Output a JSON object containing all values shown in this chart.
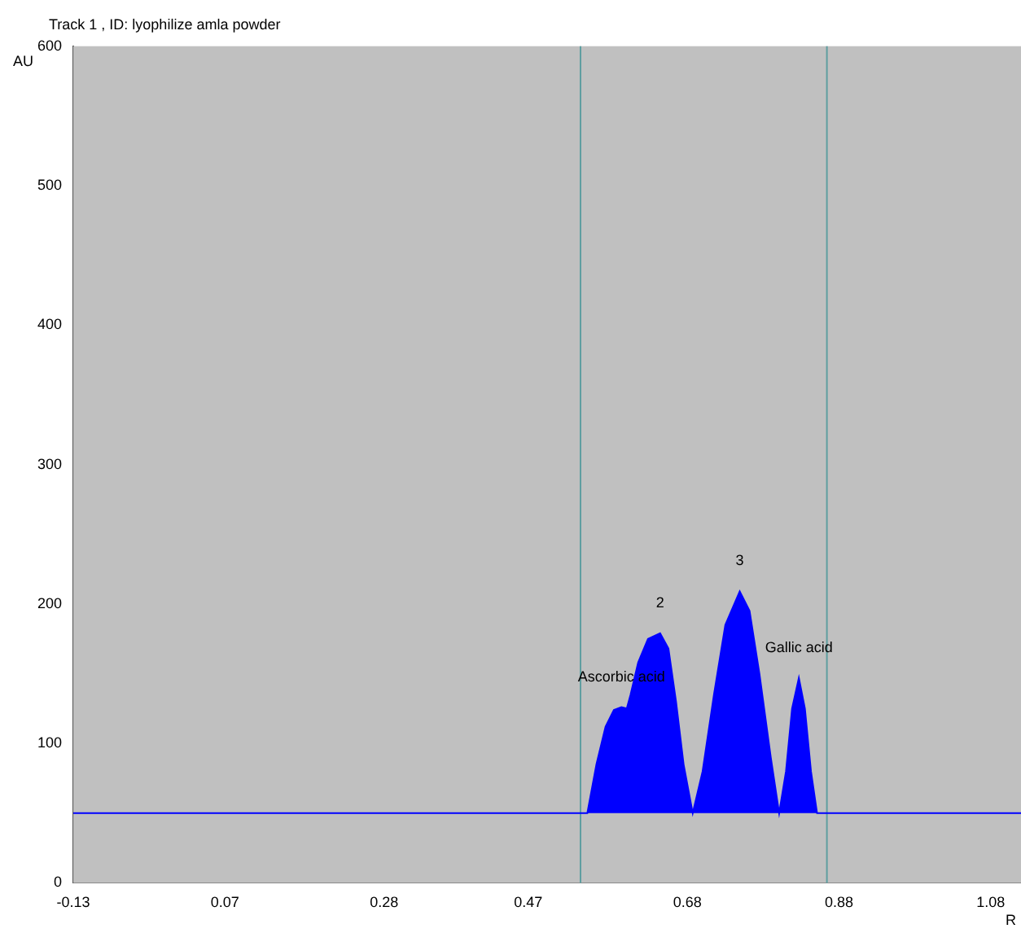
{
  "chart_data": {
    "type": "area",
    "title": "Track  1 , ID: lyophilize amla powder",
    "xlabel": "R",
    "ylabel": "AU",
    "x": [
      -0.13,
      0.548,
      0.56,
      0.572,
      0.583,
      0.593,
      0.6,
      0.605,
      0.615,
      0.628,
      0.644,
      0.655,
      0.665,
      0.675,
      0.687,
      0.7,
      0.715,
      0.73,
      0.749,
      0.762,
      0.775,
      0.79,
      0.801,
      0.81,
      0.818,
      0.827,
      0.835,
      0.843,
      0.851,
      1.12
    ],
    "series": [
      {
        "color": "#0000ff",
        "values": [
          50,
          50,
          85,
          112,
          124,
          126,
          125,
          135,
          158,
          175,
          179,
          168,
          130,
          85,
          50,
          80,
          135,
          185,
          209,
          195,
          150,
          90,
          50,
          80,
          125,
          147,
          125,
          80,
          50,
          50
        ]
      }
    ],
    "xlim": [
      -0.13,
      1.12
    ],
    "ylim": [
      0,
      600
    ],
    "xticks": [
      -0.13,
      0.07,
      0.28,
      0.47,
      0.68,
      0.88,
      1.08
    ],
    "yticks": [
      0,
      100,
      200,
      300,
      400,
      500,
      600
    ],
    "ref_lines": [
      {
        "axis": "x",
        "value": 0.539,
        "color": "#5f9ea0"
      },
      {
        "axis": "x",
        "value": 0.864,
        "color": "#5f9ea0"
      }
    ],
    "annotations": [
      {
        "text": "Ascorbic acid",
        "x": 0.593,
        "y": 126
      },
      {
        "text": "2",
        "x": 0.644,
        "y": 179
      },
      {
        "text": "3",
        "x": 0.749,
        "y": 209
      },
      {
        "text": "Gallic acid",
        "x": 0.827,
        "y": 147
      }
    ],
    "grid": false,
    "legend": false
  }
}
